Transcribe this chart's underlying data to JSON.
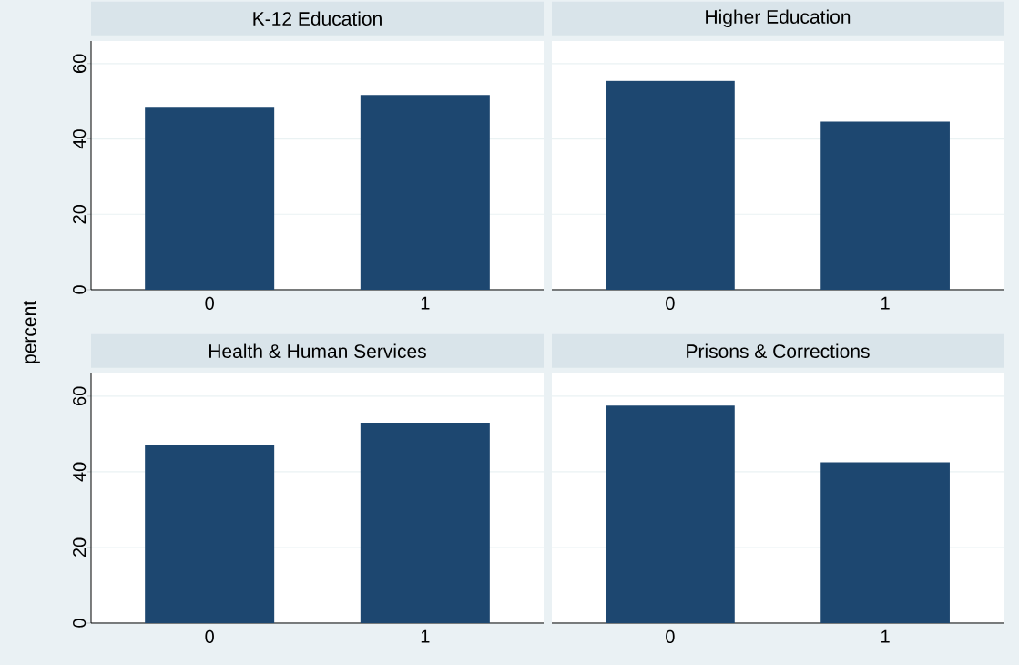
{
  "chart_data": [
    {
      "type": "bar",
      "title": "K-12 Education",
      "ylabel": "percent",
      "categories": [
        "0",
        "1"
      ],
      "values": [
        48.3,
        51.7
      ],
      "color": "#1d4770",
      "ylim": [
        0,
        66
      ],
      "yticks": [
        0,
        20,
        40,
        60
      ],
      "grid": "y"
    },
    {
      "type": "bar",
      "title": "Higher Education",
      "categories": [
        "0",
        "1"
      ],
      "values": [
        55.4,
        44.6
      ],
      "color": "#1d4770",
      "ylim": [
        0,
        66
      ],
      "yticks": [
        0,
        20,
        40,
        60
      ],
      "grid": "y",
      "tick_labels": "x"
    },
    {
      "type": "bar",
      "title": "Health & Human Services",
      "categories": [
        "0",
        "1"
      ],
      "values": [
        47,
        53
      ],
      "color": "#1d4770",
      "ylim": [
        0,
        66
      ],
      "yticks": [
        0,
        20,
        40,
        60
      ],
      "grid": "y"
    },
    {
      "type": "bar",
      "title": "Prisons & Corrections",
      "categories": [
        "0",
        "1"
      ],
      "values": [
        57.5,
        42.5
      ],
      "color": "#1d4770",
      "ylim": [
        0,
        66
      ],
      "yticks": [
        0,
        20,
        40,
        60
      ],
      "grid": "y",
      "tick_labels": "x"
    }
  ]
}
